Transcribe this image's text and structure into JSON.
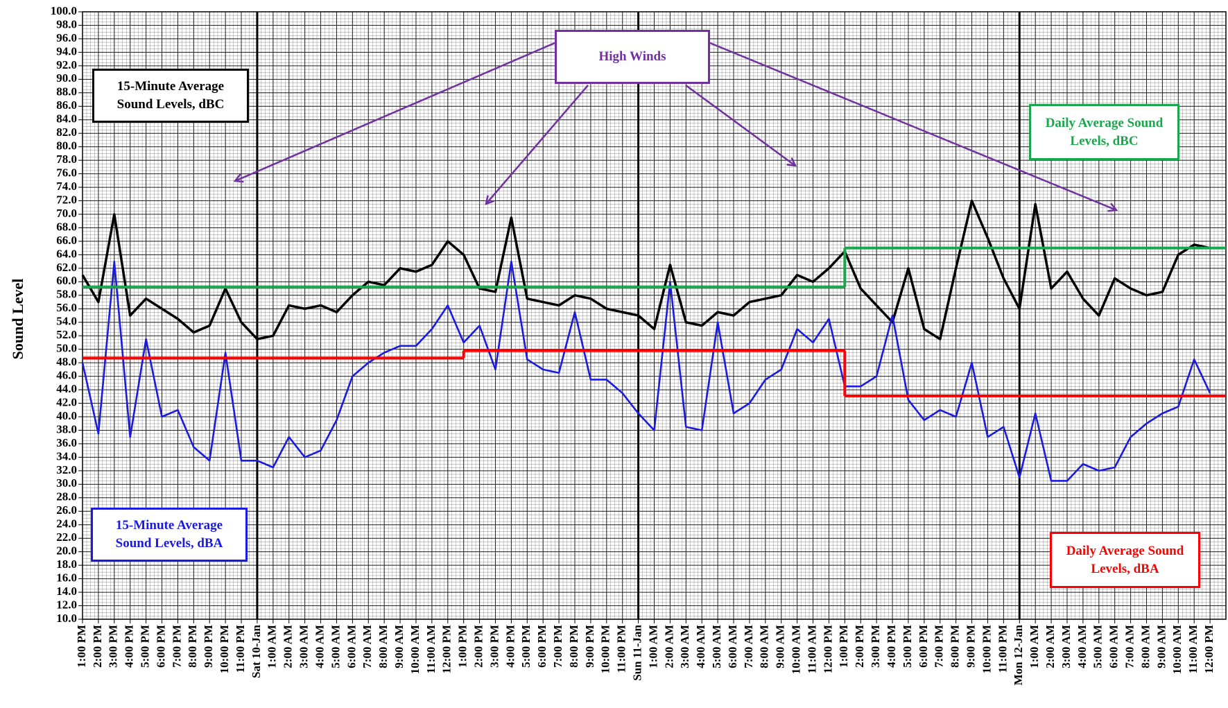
{
  "chart_data": {
    "type": "line",
    "y_label": "Sound Level",
    "ylim": [
      10,
      100
    ],
    "yticks": [
      {
        "value": 10,
        "label": "10.0"
      },
      {
        "value": 12,
        "label": "12.0"
      },
      {
        "value": 14,
        "label": "14.0"
      },
      {
        "value": 16,
        "label": "16.0"
      },
      {
        "value": 18,
        "label": "18.0"
      },
      {
        "value": 20,
        "label": "20.0"
      },
      {
        "value": 22,
        "label": "22.0"
      },
      {
        "value": 24,
        "label": "24.0"
      },
      {
        "value": 26,
        "label": "26.0"
      },
      {
        "value": 28,
        "label": "28.0"
      },
      {
        "value": 30,
        "label": "30.0"
      },
      {
        "value": 32,
        "label": "32.0"
      },
      {
        "value": 34,
        "label": "34.0"
      },
      {
        "value": 36,
        "label": "36.0"
      },
      {
        "value": 38,
        "label": "38.0"
      },
      {
        "value": 40,
        "label": "40.0"
      },
      {
        "value": 42,
        "label": "42.0"
      },
      {
        "value": 44,
        "label": "44.0"
      },
      {
        "value": 46,
        "label": "46.0"
      },
      {
        "value": 48,
        "label": "48.0"
      },
      {
        "value": 50,
        "label": "50.0"
      },
      {
        "value": 52,
        "label": "52.0"
      },
      {
        "value": 54,
        "label": "54.0"
      },
      {
        "value": 56,
        "label": "56.0"
      },
      {
        "value": 58,
        "label": "58.0"
      },
      {
        "value": 60,
        "label": "60.0"
      },
      {
        "value": 62,
        "label": "62.0"
      },
      {
        "value": 64,
        "label": "64.0"
      },
      {
        "value": 66,
        "label": "66.0"
      },
      {
        "value": 68,
        "label": "68.0"
      },
      {
        "value": 70,
        "label": "70.0"
      },
      {
        "value": 72,
        "label": "72.0"
      },
      {
        "value": 74,
        "label": "74.0"
      },
      {
        "value": 76,
        "label": "76.0"
      },
      {
        "value": 78,
        "label": "78.0"
      },
      {
        "value": 80,
        "label": "80.0"
      },
      {
        "value": 82,
        "label": "82.0"
      },
      {
        "value": 84,
        "label": "84.0"
      },
      {
        "value": 86,
        "label": "86.0"
      },
      {
        "value": 88,
        "label": "88.0"
      },
      {
        "value": 90,
        "label": "90.0"
      },
      {
        "value": 92,
        "label": "92.0"
      },
      {
        "value": 94,
        "label": "94.0"
      },
      {
        "value": 96,
        "label": "96.0"
      },
      {
        "value": 98,
        "label": "98.0"
      },
      {
        "value": 100,
        "label": "100.0"
      }
    ],
    "grid": true,
    "categories": [
      "1:00 PM",
      "2:00 PM",
      "3:00 PM",
      "4:00 PM",
      "5:00 PM",
      "6:00 PM",
      "7:00 PM",
      "8:00 PM",
      "9:00 PM",
      "10:00 PM",
      "11:00 PM",
      "Sat 10-Jan",
      "1:00 AM",
      "2:00 AM",
      "3:00 AM",
      "4:00 AM",
      "5:00 AM",
      "6:00 AM",
      "7:00 AM",
      "8:00 AM",
      "9:00 AM",
      "10:00 AM",
      "11:00 AM",
      "12:00 PM",
      "1:00 PM",
      "2:00 PM",
      "3:00 PM",
      "4:00 PM",
      "5:00 PM",
      "6:00 PM",
      "7:00 PM",
      "8:00 PM",
      "9:00 PM",
      "10:00 PM",
      "11:00 PM",
      "Sun 11-Jan",
      "1:00 AM",
      "2:00 AM",
      "3:00 AM",
      "4:00 AM",
      "5:00 AM",
      "6:00 AM",
      "7:00 AM",
      "8:00 AM",
      "9:00 AM",
      "10:00 AM",
      "11:00 AM",
      "12:00 PM",
      "1:00 PM",
      "2:00 PM",
      "3:00 PM",
      "4:00 PM",
      "5:00 PM",
      "6:00 PM",
      "7:00 PM",
      "8:00 PM",
      "9:00 PM",
      "10:00 PM",
      "11:00 PM",
      "Mon 12-Jan",
      "1:00 AM",
      "2:00 AM",
      "3:00 AM",
      "4:00 AM",
      "5:00 AM",
      "6:00 AM",
      "7:00 AM",
      "8:00 AM",
      "9:00 AM",
      "10:00 AM",
      "11:00 AM",
      "12:00 PM"
    ],
    "series": [
      {
        "name": "15-Minute Average Sound Levels, dBC",
        "color": "#000000",
        "style": "line",
        "values": [
          61,
          57,
          70,
          55,
          57.5,
          56,
          54.5,
          52.5,
          53.5,
          59,
          54,
          51.5,
          52,
          56.5,
          56,
          56.5,
          55.5,
          58,
          60,
          59.5,
          62,
          61.5,
          62.5,
          66,
          64,
          59,
          58.5,
          69.5,
          57.5,
          57,
          56.5,
          58,
          57.5,
          56,
          55.5,
          55,
          53,
          62.5,
          54,
          53.5,
          55.5,
          55,
          57,
          57.5,
          58,
          61,
          60,
          62,
          64.5,
          59,
          56.5,
          54,
          62,
          53,
          51.5,
          62,
          72,
          66.5,
          60.5,
          56,
          71.5,
          59,
          61.5,
          57.5,
          55,
          60.5,
          59,
          58,
          58.5,
          64,
          65.5,
          65
        ]
      },
      {
        "name": "15-Minute Average Sound Levels, dBA",
        "color": "#1a1ae0",
        "style": "line",
        "values": [
          48,
          37.5,
          63,
          37,
          51.5,
          40,
          41,
          35.5,
          33.5,
          49.5,
          33.5,
          33.5,
          32.5,
          37,
          34,
          35,
          39.5,
          46,
          48,
          49.5,
          50.5,
          50.5,
          53,
          56.5,
          51,
          53.5,
          47,
          63,
          48.5,
          47,
          46.5,
          55.5,
          45.5,
          45.5,
          43.5,
          40.5,
          38,
          60,
          38.5,
          38,
          54,
          40.5,
          42,
          45.5,
          47,
          53,
          51,
          54.5,
          44.5,
          44.5,
          46,
          55,
          42.5,
          39.5,
          41,
          40,
          48,
          37,
          38.5,
          31,
          40.5,
          30.5,
          30.5,
          33,
          32,
          32.5,
          37,
          39,
          40.5,
          41.5,
          48.5,
          43.5
        ]
      },
      {
        "name": "Daily Average Sound Levels, dBC",
        "color": "#1aa64a",
        "style": "step",
        "values": [
          59.2,
          59.2,
          59.2,
          59.2,
          59.2,
          59.2,
          59.2,
          59.2,
          59.2,
          59.2,
          59.2,
          59.2,
          59.2,
          59.2,
          59.2,
          59.2,
          59.2,
          59.2,
          59.2,
          59.2,
          59.2,
          59.2,
          59.2,
          59.2,
          59.2,
          59.2,
          59.2,
          59.2,
          59.2,
          59.2,
          59.2,
          59.2,
          59.2,
          59.2,
          59.2,
          59.2,
          59.2,
          59.2,
          59.2,
          59.2,
          59.2,
          59.2,
          59.2,
          59.2,
          59.2,
          59.2,
          59.2,
          59.2,
          65,
          65,
          65,
          65,
          65,
          65,
          65,
          65,
          65,
          65,
          65,
          65,
          65,
          65,
          65,
          65,
          65,
          65,
          65,
          65,
          65,
          65,
          65,
          65
        ]
      },
      {
        "name": "Daily Average Sound Levels, dBA",
        "color": "#ff0000",
        "style": "step",
        "values": [
          48.7,
          48.7,
          48.7,
          48.7,
          48.7,
          48.7,
          48.7,
          48.7,
          48.7,
          48.7,
          48.7,
          48.7,
          48.7,
          48.7,
          48.7,
          48.7,
          48.7,
          48.7,
          48.7,
          48.7,
          48.7,
          48.7,
          48.7,
          48.7,
          49.8,
          49.8,
          49.8,
          49.8,
          49.8,
          49.8,
          49.8,
          49.8,
          49.8,
          49.8,
          49.8,
          49.8,
          49.8,
          49.8,
          49.8,
          49.8,
          49.8,
          49.8,
          49.8,
          49.8,
          49.8,
          49.8,
          49.8,
          49.8,
          43.1,
          43.1,
          43.1,
          43.1,
          43.1,
          43.1,
          43.1,
          43.1,
          43.1,
          43.1,
          43.1,
          43.1,
          43.1,
          43.1,
          43.1,
          43.1,
          43.1,
          43.1,
          43.1,
          43.1,
          43.1,
          43.1,
          43.1,
          43.1
        ]
      }
    ],
    "annotation": {
      "text": "High Winds",
      "color": "#7030a0"
    }
  }
}
